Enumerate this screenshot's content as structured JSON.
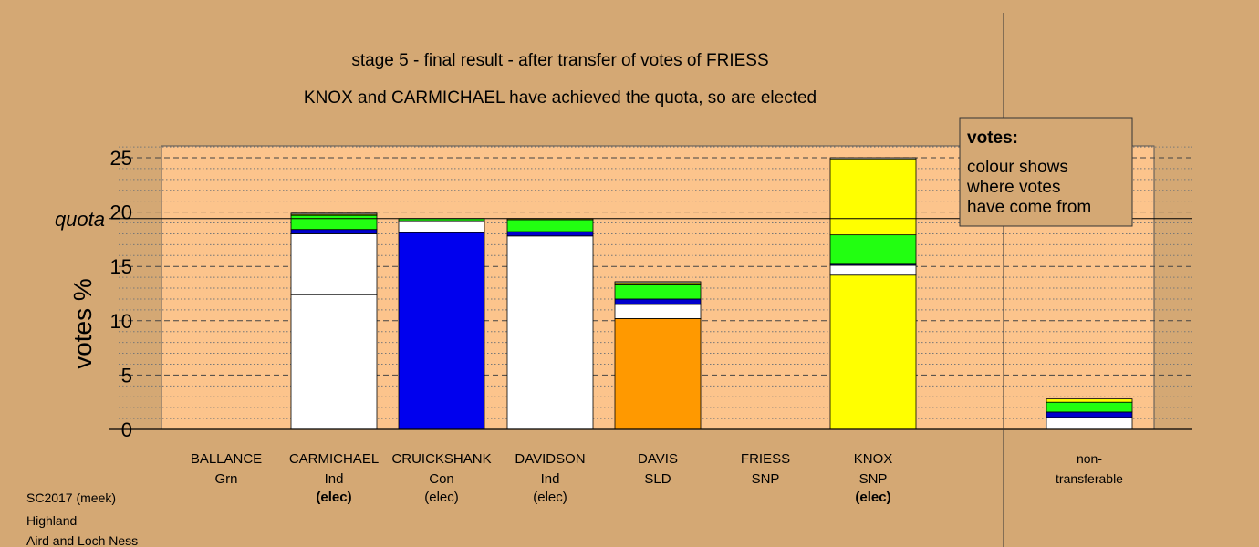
{
  "chart_data": {
    "type": "bar",
    "stacked": true,
    "title": "stage 5 - final result - after transfer of votes of FRIESS",
    "subtitle": "KNOX and CARMICHAEL have achieved the quota, so are elected",
    "ylabel": "votes %",
    "ylim": [
      0,
      26.2
    ],
    "yticks": [
      0,
      5,
      10,
      15,
      20,
      25
    ],
    "quota": 19.4,
    "quota_label": "quota",
    "grid": "dashed major, dotted minor",
    "categories": [
      {
        "name": "BALLANCE",
        "party": "Grn",
        "note": ""
      },
      {
        "name": "CARMICHAEL",
        "party": "Ind",
        "note": "(elec)"
      },
      {
        "name": "CRUICKSHANK",
        "party": "Con",
        "note": "(elec)"
      },
      {
        "name": "DAVIDSON",
        "party": "Ind",
        "note": "(elec)"
      },
      {
        "name": "DAVIS",
        "party": "SLD",
        "note": ""
      },
      {
        "name": "FRIESS",
        "party": "SNP",
        "note": ""
      },
      {
        "name": "KNOX",
        "party": "SNP",
        "note": "(elec)"
      },
      {
        "name": "non-",
        "party": "transferable",
        "note": ""
      }
    ],
    "bold_notes": [
      1,
      6
    ],
    "stacks": [
      [],
      [
        {
          "value": 12.4,
          "color": "#ffffff"
        },
        {
          "value": 5.6,
          "color": "#ffffff"
        },
        {
          "value": 0.4,
          "color": "#0000cc"
        },
        {
          "value": 1.3,
          "color": "#22ff11"
        },
        {
          "value": 0.1,
          "color": "#ffff00"
        },
        {
          "value": 0.1,
          "color": "#ffffff"
        }
      ],
      [
        {
          "value": 18.1,
          "color": "#0000ee"
        },
        {
          "value": 1.1,
          "color": "#ffffff"
        },
        {
          "value": 0.2,
          "color": "#22ff11"
        }
      ],
      [
        {
          "value": 17.8,
          "color": "#ffffff"
        },
        {
          "value": 0.4,
          "color": "#0000cc"
        },
        {
          "value": 1.1,
          "color": "#22ff11"
        },
        {
          "value": 0.1,
          "color": "#ffff00"
        }
      ],
      [
        {
          "value": 10.2,
          "color": "#ff9900"
        },
        {
          "value": 1.3,
          "color": "#ffffff"
        },
        {
          "value": 0.5,
          "color": "#0000cc"
        },
        {
          "value": 1.3,
          "color": "#22ff11"
        },
        {
          "value": 0.2,
          "color": "#ffff00"
        },
        {
          "value": 0.1,
          "color": "#ffffff"
        }
      ],
      [],
      [
        {
          "value": 14.2,
          "color": "#ffff00"
        },
        {
          "value": 0.9,
          "color": "#ffffff"
        },
        {
          "value": 0.1,
          "color": "#0000cc"
        },
        {
          "value": 2.7,
          "color": "#22ff11"
        },
        {
          "value": 7.0,
          "color": "#ffff00"
        },
        {
          "value": 0.1,
          "color": "#ffffff"
        }
      ],
      [
        {
          "value": 1.1,
          "color": "#ffffff"
        },
        {
          "value": 0.5,
          "color": "#0000cc"
        },
        {
          "value": 0.9,
          "color": "#22ff11"
        },
        {
          "value": 0.3,
          "color": "#ffff00"
        }
      ]
    ]
  },
  "legend": {
    "title": "votes:",
    "lines": [
      "colour shows",
      "where votes",
      "have come from"
    ]
  },
  "footer": {
    "lines": [
      "SC2017 (meek)",
      "Highland",
      "Aird and Loch Ness"
    ]
  },
  "colors": {
    "background": "#d4a874",
    "plot_fill": "#fcc48c",
    "legend_fill": "#d4a874"
  }
}
